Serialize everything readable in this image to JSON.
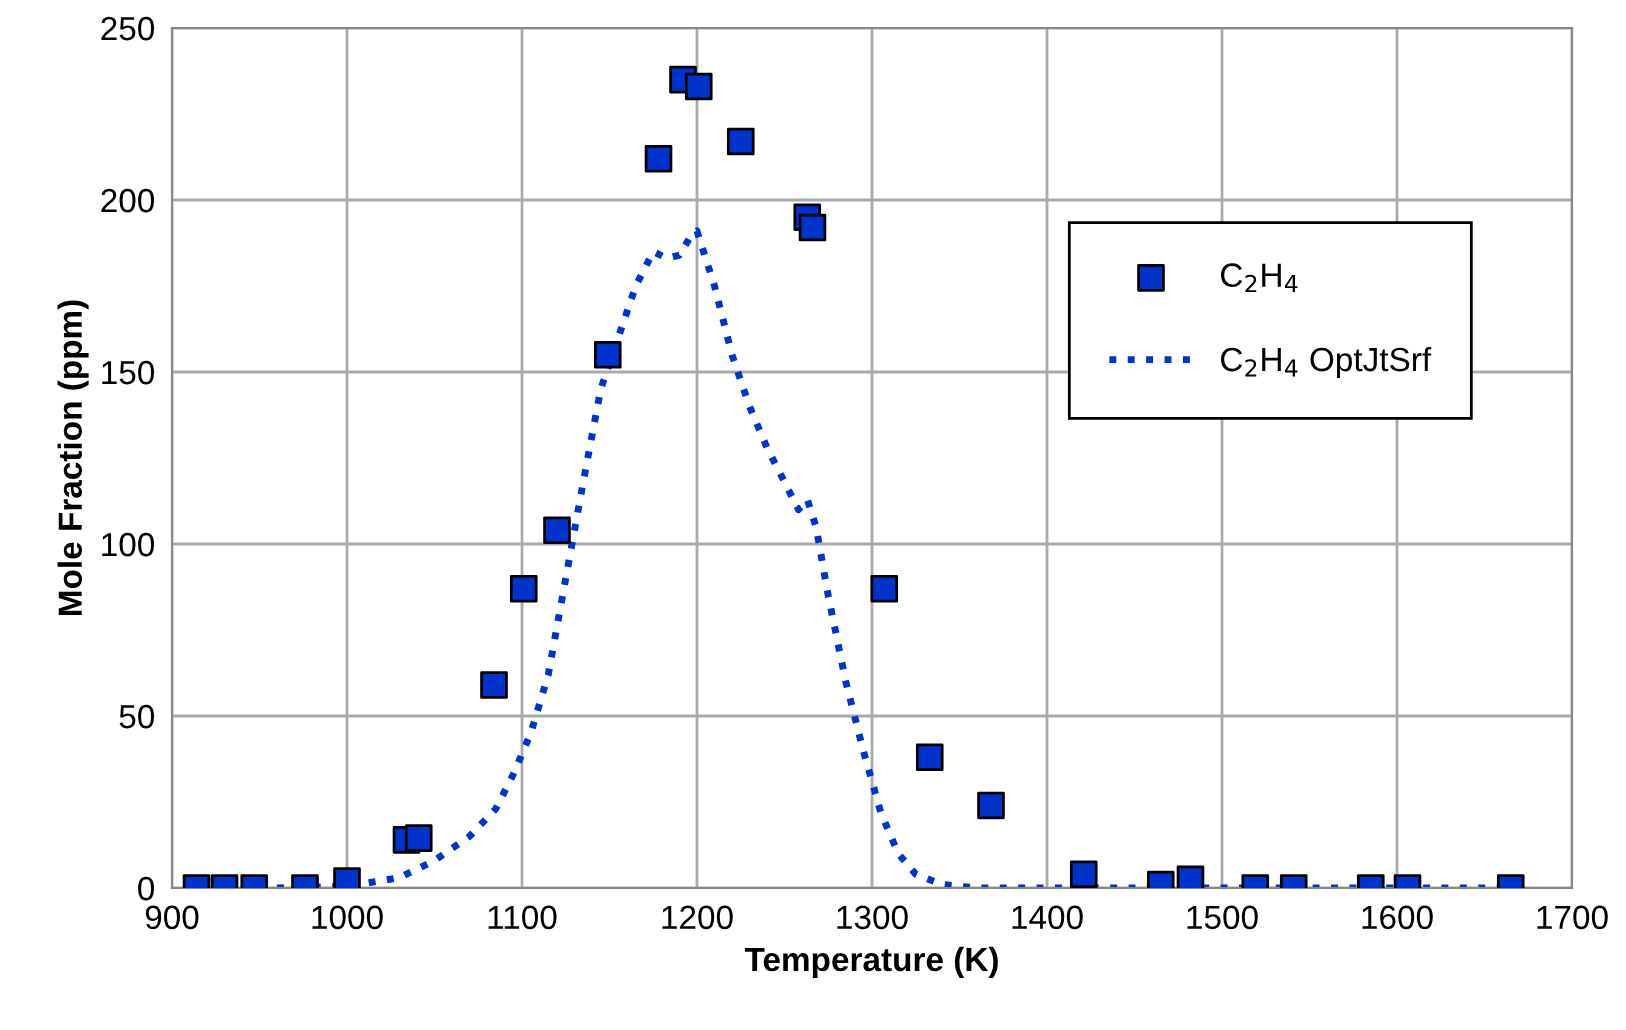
{
  "chart_data": {
    "type": "scatter",
    "xlabel": "Temperature (K)",
    "ylabel": "Mole Fraction (ppm)",
    "xlim": [
      900,
      1700
    ],
    "xticks": [
      900,
      1000,
      1100,
      1200,
      1300,
      1400,
      1500,
      1600,
      1700
    ],
    "ylim": [
      0,
      250
    ],
    "yticks": [
      0,
      50,
      100,
      150,
      200,
      250
    ],
    "grid": true,
    "legend": "right",
    "series": [
      {
        "name": "C$_{2}$H$_{4}$",
        "marker": "square",
        "color": "#0033cc",
        "x": [
          914,
          930,
          947,
          976,
          1000,
          1034,
          1041,
          1084,
          1101,
          1120,
          1149,
          1178,
          1192,
          1201,
          1225,
          1263,
          1266,
          1307,
          1333,
          1368,
          1421,
          1465,
          1482,
          1519,
          1541,
          1585,
          1606,
          1665
        ],
        "values": [
          0,
          0,
          0,
          0,
          2,
          14,
          14.5,
          59,
          87,
          104,
          155,
          212,
          235,
          233,
          217,
          195,
          192,
          87,
          38,
          24,
          4,
          1,
          2.5,
          0,
          0,
          0,
          0,
          0
        ]
      },
      {
        "name": "C$_{2}$H$_{4}$ OptJtSrf",
        "type": "line",
        "marker": "none",
        "line_style": "dotted",
        "color": "#0033cc",
        "x": [
          960,
          1000,
          1030,
          1050,
          1070,
          1085,
          1095,
          1105,
          1115,
          1125,
          1135,
          1145,
          1155,
          1165,
          1175,
          1183,
          1190,
          1197,
          1200,
          1210,
          1220,
          1230,
          1240,
          1250,
          1258,
          1263,
          1268,
          1275,
          1285,
          1295,
          1305,
          1315,
          1325,
          1340,
          1360,
          1400,
          1500,
          1600,
          1665
        ],
        "values": [
          0,
          0.5,
          3,
          8,
          15,
          23,
          33,
          45,
          62,
          90,
          118,
          145,
          160,
          175,
          185,
          183,
          184,
          190,
          191,
          175,
          155,
          140,
          128,
          118,
          110,
          113,
          105,
          85,
          60,
          40,
          22,
          10,
          4,
          1,
          0,
          0,
          0,
          0,
          0
        ]
      }
    ]
  }
}
